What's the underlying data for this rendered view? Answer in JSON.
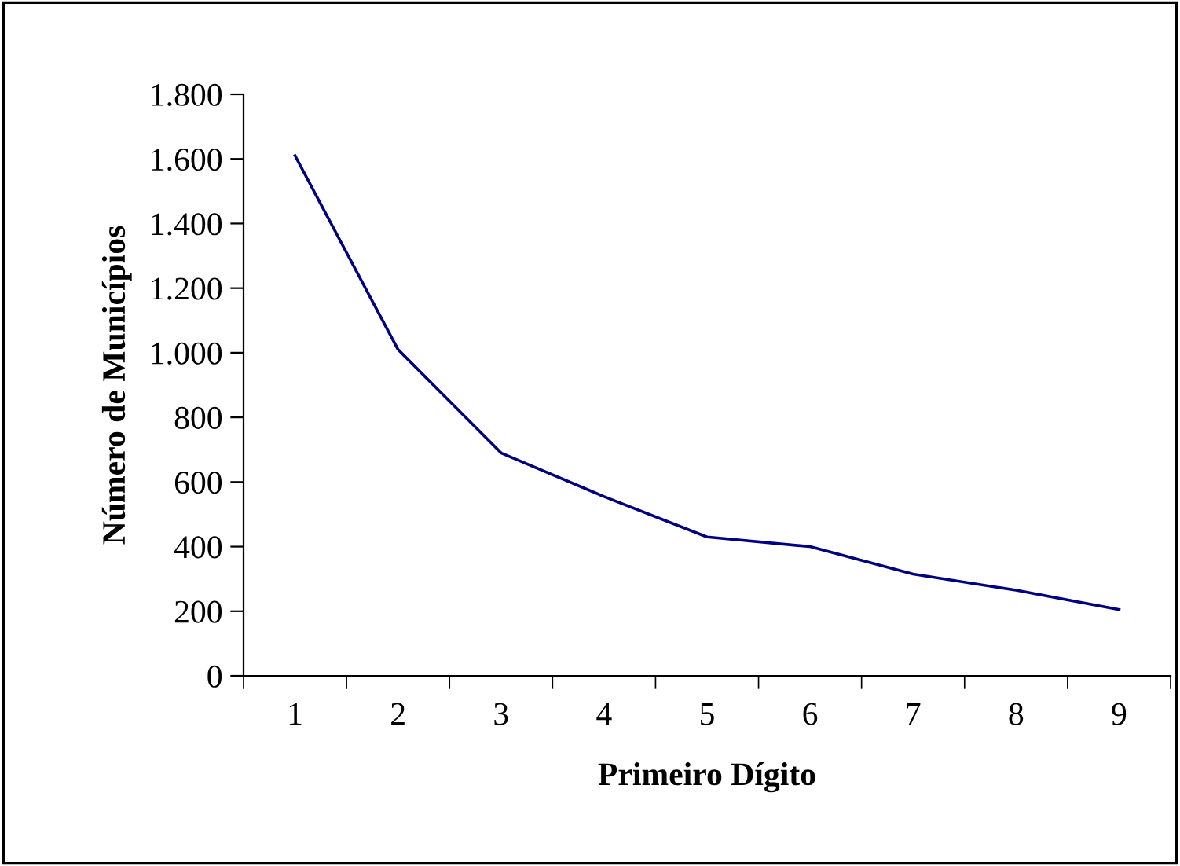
{
  "chart_data": {
    "type": "line",
    "xlabel": "Primeiro Dígito",
    "ylabel": "Número de Municípios",
    "categories": [
      "1",
      "2",
      "3",
      "4",
      "5",
      "6",
      "7",
      "8",
      "9"
    ],
    "series": [
      {
        "color": "#000080",
        "values": [
          1610,
          1010,
          690,
          555,
          430,
          400,
          315,
          265,
          205
        ]
      }
    ],
    "ylim": [
      0,
      1800
    ],
    "yticks": [
      0,
      200,
      400,
      600,
      800,
      {
        "value": 1000,
        "label": "1.000"
      },
      {
        "value": 1200,
        "label": "1.200"
      },
      {
        "value": 1400,
        "label": "1.400"
      },
      {
        "value": 1600,
        "label": "1.600"
      },
      {
        "value": 1800,
        "label": "1.800"
      }
    ],
    "grid": false,
    "marker": "none",
    "line_style": "solid"
  }
}
